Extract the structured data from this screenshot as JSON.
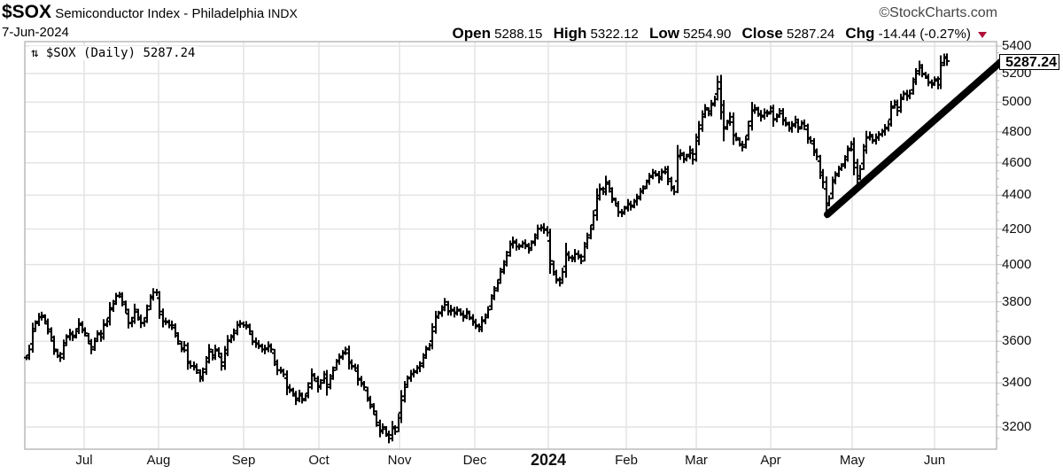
{
  "header": {
    "symbol": "$SOX",
    "name": "Semiconductor Index - Philadelphia",
    "exchange": "INDX",
    "date": "7-Jun-2024",
    "copyright": "©StockCharts.com",
    "open_label": "Open",
    "open": "5288.15",
    "high_label": "High",
    "high": "5322.12",
    "low_label": "Low",
    "low": "5254.90",
    "close_label": "Close",
    "close": "5287.24",
    "chg_label": "Chg",
    "chg": "-14.44 (-0.27%)",
    "chg_direction": "down",
    "chg_color": "#b0103a"
  },
  "legend": {
    "icon": "up-down-arrows-icon",
    "text": "$SOX (Daily) 5287.24"
  },
  "last_price_tag": "5287.24",
  "chart_data": {
    "type": "ohlc",
    "title": "$SOX Semiconductor Index - Philadelphia INDX",
    "subtitle": "7-Jun-2024",
    "xlabel": "",
    "ylabel": "",
    "y_scale": "log",
    "ylim": [
      3120,
      5420
    ],
    "y_ticks": [
      3200,
      3400,
      3600,
      3800,
      4000,
      4200,
      4400,
      4600,
      4800,
      5000,
      5200,
      5400
    ],
    "x_ticks": [
      "Jul",
      "Aug",
      "Sep",
      "Oct",
      "Nov",
      "Dec",
      "2024",
      "Feb",
      "Mar",
      "Apr",
      "May",
      "Jun"
    ],
    "grid": true,
    "legend_position": "top-left",
    "last_close": 5287.24,
    "annotations": [
      {
        "type": "trendline",
        "from": {
          "date": "2024-04-19",
          "value": 4290
        },
        "to": {
          "date": "2024-06-24",
          "value": 5290
        },
        "style": "thick black"
      }
    ],
    "approx_monthly_path": {
      "categories": [
        "mid-Jun-23",
        "Jul",
        "Aug",
        "Sep",
        "Oct",
        "Nov",
        "Dec",
        "Jan-24",
        "Feb",
        "Mar",
        "Apr",
        "May",
        "Jun"
      ],
      "values": [
        3540,
        3640,
        3820,
        3560,
        3440,
        3220,
        3760,
        4150,
        4380,
        4900,
        4930,
        4380,
        5290
      ]
    },
    "series": [
      {
        "name": "$SOX Daily (approx. close)",
        "points": [
          [
            30,
            3520
          ],
          [
            33,
            3560
          ],
          [
            37,
            3650
          ],
          [
            40,
            3690
          ],
          [
            44,
            3720
          ],
          [
            47,
            3730
          ],
          [
            51,
            3700
          ],
          [
            54,
            3660
          ],
          [
            58,
            3620
          ],
          [
            61,
            3560
          ],
          [
            65,
            3530
          ],
          [
            68,
            3520
          ],
          [
            72,
            3580
          ],
          [
            75,
            3620
          ],
          [
            79,
            3640
          ],
          [
            82,
            3620
          ],
          [
            86,
            3650
          ],
          [
            89,
            3690
          ],
          [
            93,
            3660
          ],
          [
            96,
            3640
          ],
          [
            100,
            3600
          ],
          [
            103,
            3560
          ],
          [
            107,
            3600
          ],
          [
            110,
            3640
          ],
          [
            114,
            3620
          ],
          [
            117,
            3680
          ],
          [
            121,
            3700
          ],
          [
            124,
            3760
          ],
          [
            128,
            3790
          ],
          [
            131,
            3830
          ],
          [
            135,
            3840
          ],
          [
            138,
            3800
          ],
          [
            142,
            3760
          ],
          [
            145,
            3690
          ],
          [
            149,
            3700
          ],
          [
            152,
            3760
          ],
          [
            156,
            3720
          ],
          [
            159,
            3690
          ],
          [
            163,
            3700
          ],
          [
            166,
            3760
          ],
          [
            170,
            3820
          ],
          [
            173,
            3850
          ],
          [
            177,
            3850
          ],
          [
            180,
            3750
          ],
          [
            184,
            3700
          ],
          [
            187,
            3700
          ],
          [
            191,
            3680
          ],
          [
            194,
            3680
          ],
          [
            198,
            3640
          ],
          [
            201,
            3600
          ],
          [
            205,
            3560
          ],
          [
            208,
            3580
          ],
          [
            212,
            3500
          ],
          [
            215,
            3480
          ],
          [
            219,
            3480
          ],
          [
            222,
            3460
          ],
          [
            226,
            3420
          ],
          [
            229,
            3450
          ],
          [
            233,
            3500
          ],
          [
            236,
            3560
          ],
          [
            240,
            3520
          ],
          [
            243,
            3560
          ],
          [
            247,
            3540
          ],
          [
            250,
            3480
          ],
          [
            254,
            3540
          ],
          [
            257,
            3600
          ],
          [
            261,
            3620
          ],
          [
            264,
            3640
          ],
          [
            268,
            3680
          ],
          [
            271,
            3690
          ],
          [
            275,
            3680
          ],
          [
            278,
            3680
          ],
          [
            282,
            3650
          ],
          [
            285,
            3600
          ],
          [
            289,
            3590
          ],
          [
            292,
            3580
          ],
          [
            296,
            3560
          ],
          [
            299,
            3560
          ],
          [
            303,
            3580
          ],
          [
            306,
            3560
          ],
          [
            310,
            3500
          ],
          [
            313,
            3460
          ],
          [
            317,
            3460
          ],
          [
            320,
            3440
          ],
          [
            324,
            3380
          ],
          [
            327,
            3370
          ],
          [
            331,
            3350
          ],
          [
            334,
            3320
          ],
          [
            338,
            3350
          ],
          [
            341,
            3320
          ],
          [
            345,
            3340
          ],
          [
            348,
            3380
          ],
          [
            352,
            3440
          ],
          [
            355,
            3420
          ],
          [
            359,
            3380
          ],
          [
            362,
            3400
          ],
          [
            366,
            3440
          ],
          [
            369,
            3380
          ],
          [
            373,
            3420
          ],
          [
            376,
            3460
          ],
          [
            380,
            3500
          ],
          [
            383,
            3520
          ],
          [
            387,
            3540
          ],
          [
            390,
            3560
          ],
          [
            394,
            3500
          ],
          [
            397,
            3480
          ],
          [
            401,
            3470
          ],
          [
            404,
            3420
          ],
          [
            408,
            3400
          ],
          [
            411,
            3380
          ],
          [
            415,
            3330
          ],
          [
            418,
            3300
          ],
          [
            422,
            3270
          ],
          [
            425,
            3220
          ],
          [
            429,
            3180
          ],
          [
            432,
            3200
          ],
          [
            436,
            3170
          ],
          [
            439,
            3150
          ],
          [
            443,
            3200
          ],
          [
            446,
            3180
          ],
          [
            450,
            3240
          ],
          [
            453,
            3320
          ],
          [
            457,
            3380
          ],
          [
            460,
            3420
          ],
          [
            464,
            3440
          ],
          [
            467,
            3450
          ],
          [
            471,
            3470
          ],
          [
            474,
            3480
          ],
          [
            478,
            3520
          ],
          [
            481,
            3560
          ],
          [
            485,
            3580
          ],
          [
            488,
            3650
          ],
          [
            492,
            3720
          ],
          [
            495,
            3740
          ],
          [
            499,
            3760
          ],
          [
            502,
            3800
          ],
          [
            506,
            3750
          ],
          [
            509,
            3760
          ],
          [
            513,
            3740
          ],
          [
            516,
            3760
          ],
          [
            520,
            3740
          ],
          [
            523,
            3720
          ],
          [
            527,
            3750
          ],
          [
            530,
            3720
          ],
          [
            534,
            3700
          ],
          [
            537,
            3680
          ],
          [
            541,
            3660
          ],
          [
            544,
            3700
          ],
          [
            548,
            3720
          ],
          [
            551,
            3760
          ],
          [
            555,
            3820
          ],
          [
            558,
            3860
          ],
          [
            562,
            3900
          ],
          [
            565,
            3960
          ],
          [
            569,
            4000
          ],
          [
            572,
            4050
          ],
          [
            576,
            4110
          ],
          [
            579,
            4130
          ],
          [
            583,
            4100
          ],
          [
            586,
            4100
          ],
          [
            590,
            4120
          ],
          [
            593,
            4110
          ],
          [
            597,
            4080
          ],
          [
            600,
            4120
          ],
          [
            604,
            4150
          ],
          [
            607,
            4200
          ],
          [
            611,
            4210
          ],
          [
            614,
            4200
          ],
          [
            618,
            4180
          ],
          [
            621,
            4020
          ],
          [
            625,
            3960
          ],
          [
            628,
            3920
          ],
          [
            632,
            3900
          ],
          [
            635,
            3960
          ],
          [
            639,
            4060
          ],
          [
            642,
            4040
          ],
          [
            646,
            4030
          ],
          [
            649,
            4060
          ],
          [
            653,
            4050
          ],
          [
            656,
            4020
          ],
          [
            660,
            4100
          ],
          [
            663,
            4150
          ],
          [
            667,
            4200
          ],
          [
            670,
            4280
          ],
          [
            674,
            4380
          ],
          [
            677,
            4440
          ],
          [
            681,
            4420
          ],
          [
            684,
            4480
          ],
          [
            688,
            4440
          ],
          [
            691,
            4380
          ],
          [
            695,
            4350
          ],
          [
            698,
            4300
          ],
          [
            702,
            4290
          ],
          [
            705,
            4320
          ],
          [
            709,
            4350
          ],
          [
            712,
            4330
          ],
          [
            716,
            4360
          ],
          [
            719,
            4380
          ],
          [
            723,
            4420
          ],
          [
            726,
            4440
          ],
          [
            730,
            4480
          ],
          [
            733,
            4510
          ],
          [
            737,
            4540
          ],
          [
            740,
            4530
          ],
          [
            744,
            4500
          ],
          [
            747,
            4540
          ],
          [
            751,
            4560
          ],
          [
            754,
            4500
          ],
          [
            758,
            4450
          ],
          [
            761,
            4420
          ],
          [
            765,
            4640
          ],
          [
            768,
            4660
          ],
          [
            772,
            4620
          ],
          [
            775,
            4640
          ],
          [
            779,
            4680
          ],
          [
            782,
            4620
          ],
          [
            786,
            4740
          ],
          [
            789,
            4820
          ],
          [
            793,
            4900
          ],
          [
            796,
            4960
          ],
          [
            800,
            4920
          ],
          [
            803,
            4980
          ],
          [
            807,
            5020
          ],
          [
            810,
            5140
          ],
          [
            814,
            4980
          ],
          [
            817,
            4820
          ],
          [
            821,
            4860
          ],
          [
            824,
            4900
          ],
          [
            828,
            4780
          ],
          [
            831,
            4760
          ],
          [
            835,
            4720
          ],
          [
            838,
            4700
          ],
          [
            842,
            4750
          ],
          [
            845,
            4840
          ],
          [
            849,
            4940
          ],
          [
            852,
            4960
          ],
          [
            856,
            4920
          ],
          [
            859,
            4900
          ],
          [
            863,
            4930
          ],
          [
            866,
            4920
          ],
          [
            870,
            4960
          ],
          [
            873,
            4880
          ],
          [
            877,
            4900
          ],
          [
            880,
            4940
          ],
          [
            884,
            4880
          ],
          [
            887,
            4860
          ],
          [
            891,
            4820
          ],
          [
            894,
            4840
          ],
          [
            898,
            4880
          ],
          [
            901,
            4820
          ],
          [
            905,
            4860
          ],
          [
            908,
            4840
          ],
          [
            912,
            4760
          ],
          [
            915,
            4740
          ],
          [
            919,
            4680
          ],
          [
            922,
            4640
          ],
          [
            926,
            4540
          ],
          [
            929,
            4480
          ],
          [
            933,
            4340
          ],
          [
            936,
            4380
          ],
          [
            940,
            4480
          ],
          [
            943,
            4520
          ],
          [
            947,
            4560
          ],
          [
            950,
            4580
          ],
          [
            954,
            4620
          ],
          [
            957,
            4680
          ],
          [
            961,
            4720
          ],
          [
            964,
            4600
          ],
          [
            968,
            4500
          ],
          [
            971,
            4560
          ],
          [
            975,
            4680
          ],
          [
            978,
            4760
          ],
          [
            982,
            4780
          ],
          [
            985,
            4740
          ],
          [
            989,
            4760
          ],
          [
            992,
            4780
          ],
          [
            996,
            4800
          ],
          [
            999,
            4820
          ],
          [
            1003,
            4850
          ],
          [
            1006,
            4960
          ],
          [
            1010,
            5000
          ],
          [
            1013,
            4940
          ],
          [
            1017,
            5020
          ],
          [
            1020,
            5060
          ],
          [
            1024,
            5040
          ],
          [
            1027,
            5060
          ],
          [
            1031,
            5140
          ],
          [
            1034,
            5200
          ],
          [
            1038,
            5260
          ],
          [
            1041,
            5200
          ],
          [
            1045,
            5180
          ],
          [
            1048,
            5140
          ],
          [
            1052,
            5120
          ],
          [
            1055,
            5160
          ],
          [
            1059,
            5120
          ],
          [
            1062,
            5260
          ],
          [
            1066,
            5320
          ],
          [
            1069,
            5290
          ]
        ]
      }
    ]
  }
}
